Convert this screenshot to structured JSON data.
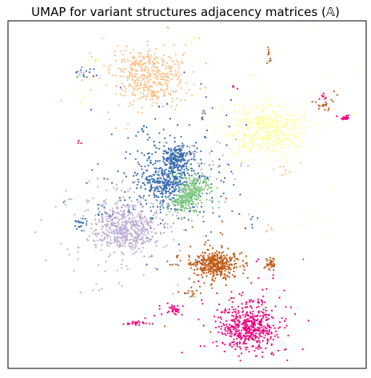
{
  "chart_data": {
    "type": "scatter",
    "title": "UMAP for variant structures adjacency matrices (𝔸)",
    "xlabel": "",
    "ylabel": "",
    "xlim": [
      0,
      100
    ],
    "ylim": [
      0,
      100
    ],
    "grid": false,
    "legend": "none",
    "axes_ticks": false,
    "annotations": [
      {
        "text": "𝔸",
        "x": 54,
        "y": 73
      }
    ],
    "series": [
      {
        "color": "#fdc086",
        "clusters": [
          {
            "x": 39,
            "y": 84,
            "sx": 5,
            "sy": 4,
            "n": 420
          },
          {
            "x": 41,
            "y": 79,
            "sx": 1.5,
            "sy": 1.2,
            "n": 25
          },
          {
            "x": 35,
            "y": 88,
            "sx": 1,
            "sy": 1,
            "n": 10
          },
          {
            "x": 77,
            "y": 57,
            "sx": 1.5,
            "sy": 0.8,
            "n": 8
          },
          {
            "x": 73,
            "y": 40,
            "sx": 0.6,
            "sy": 0.6,
            "n": 5
          }
        ]
      },
      {
        "color": "#ffff99",
        "clusters": [
          {
            "x": 73,
            "y": 69,
            "sx": 4.5,
            "sy": 3.5,
            "n": 420
          },
          {
            "x": 66,
            "y": 63,
            "sx": 3,
            "sy": 3,
            "n": 20
          },
          {
            "x": 21,
            "y": 77,
            "sx": 1.5,
            "sy": 1.5,
            "n": 6
          },
          {
            "x": 52,
            "y": 94,
            "sx": 1,
            "sy": 1,
            "n": 5
          },
          {
            "x": 84,
            "y": 43,
            "sx": 2,
            "sy": 2,
            "n": 6
          },
          {
            "x": 24,
            "y": 89,
            "sx": 0.8,
            "sy": 0.6,
            "n": 6
          }
        ]
      },
      {
        "color": "#386cb0",
        "clusters": [
          {
            "x": 47,
            "y": 60,
            "sx": 2,
            "sy": 2,
            "n": 220
          },
          {
            "x": 44,
            "y": 53,
            "sx": 3,
            "sy": 2.5,
            "n": 260
          },
          {
            "x": 44,
            "y": 55,
            "sx": 8,
            "sy": 7,
            "n": 280
          },
          {
            "x": 20,
            "y": 42,
            "sx": 1,
            "sy": 1.2,
            "n": 20
          },
          {
            "x": 27,
            "y": 45,
            "sx": 1,
            "sy": 1,
            "n": 10
          },
          {
            "x": 21,
            "y": 85,
            "sx": 1.6,
            "sy": 0.8,
            "n": 12
          },
          {
            "x": 38,
            "y": 69,
            "sx": 0.5,
            "sy": 1,
            "n": 6
          },
          {
            "x": 68,
            "y": 42,
            "sx": 0.5,
            "sy": 1.2,
            "n": 6
          }
        ]
      },
      {
        "color": "#7fc97f",
        "clusters": [
          {
            "x": 52,
            "y": 52,
            "sx": 2.2,
            "sy": 2,
            "n": 180
          },
          {
            "x": 49,
            "y": 48,
            "sx": 2,
            "sy": 1.5,
            "n": 150
          },
          {
            "x": 17,
            "y": 49,
            "sx": 0.5,
            "sy": 0.5,
            "n": 3
          },
          {
            "x": 20,
            "y": 84,
            "sx": 0.6,
            "sy": 0.6,
            "n": 4
          },
          {
            "x": 52,
            "y": 20,
            "sx": 0.3,
            "sy": 0.3,
            "n": 2
          }
        ]
      },
      {
        "color": "#beaed4",
        "clusters": [
          {
            "x": 33,
            "y": 40,
            "sx": 4,
            "sy": 3.2,
            "n": 460
          },
          {
            "x": 32,
            "y": 42,
            "sx": 8,
            "sy": 7,
            "n": 150
          },
          {
            "x": 21,
            "y": 86,
            "sx": 0.8,
            "sy": 0.5,
            "n": 6
          },
          {
            "x": 59,
            "y": 58,
            "sx": 5,
            "sy": 4,
            "n": 25
          }
        ]
      },
      {
        "color": "#bf5b17",
        "clusters": [
          {
            "x": 58,
            "y": 30,
            "sx": 3,
            "sy": 1.8,
            "n": 380
          },
          {
            "x": 73,
            "y": 30,
            "sx": 0.8,
            "sy": 0.8,
            "n": 35
          },
          {
            "x": 73,
            "y": 90,
            "sx": 0.3,
            "sy": 1,
            "n": 10
          },
          {
            "x": 88,
            "y": 76,
            "sx": 1,
            "sy": 1,
            "n": 20
          },
          {
            "x": 51,
            "y": 22,
            "sx": 0.8,
            "sy": 0.6,
            "n": 12
          },
          {
            "x": 58,
            "y": 30,
            "sx": 6,
            "sy": 6,
            "n": 40
          }
        ]
      },
      {
        "color": "#f0027f",
        "clusters": [
          {
            "x": 67,
            "y": 12,
            "sx": 3.5,
            "sy": 3,
            "n": 470
          },
          {
            "x": 67,
            "y": 13,
            "sx": 7,
            "sy": 6,
            "n": 80
          },
          {
            "x": 94,
            "y": 72,
            "sx": 0.6,
            "sy": 0.4,
            "n": 25
          },
          {
            "x": 46,
            "y": 17,
            "sx": 1.2,
            "sy": 0.8,
            "n": 30
          },
          {
            "x": 36,
            "y": 13,
            "sx": 1.5,
            "sy": 0.3,
            "n": 25
          },
          {
            "x": 88,
            "y": 78,
            "sx": 0.6,
            "sy": 0.5,
            "n": 6
          },
          {
            "x": 63,
            "y": 81,
            "sx": 0.4,
            "sy": 0.4,
            "n": 4
          },
          {
            "x": 20,
            "y": 65,
            "sx": 0.3,
            "sy": 0.3,
            "n": 3
          }
        ]
      },
      {
        "color": "#666666",
        "clusters": [
          {
            "x": 54,
            "y": 72,
            "sx": 0.3,
            "sy": 0.3,
            "n": 3
          }
        ]
      }
    ]
  }
}
